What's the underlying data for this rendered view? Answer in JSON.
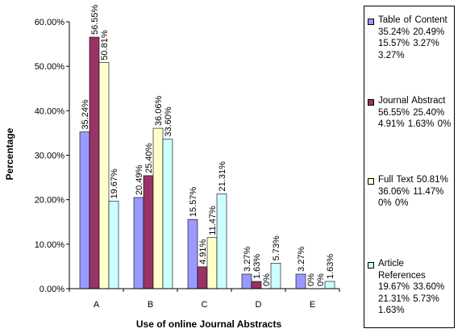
{
  "chart_data": {
    "type": "bar",
    "title": "",
    "xlabel": "Use of online Journal Abstracts",
    "ylabel": "Percentage",
    "categories": [
      "A",
      "B",
      "C",
      "D",
      "E"
    ],
    "ylim": [
      0,
      60
    ],
    "yticks": [
      "0.00%",
      "10.00%",
      "20.00%",
      "30.00%",
      "40.00%",
      "50.00%",
      "60.00%"
    ],
    "grid": false,
    "legend_position": "right",
    "series": [
      {
        "name": "Table of Content",
        "color": "#9999ff",
        "values": [
          35.24,
          20.49,
          15.57,
          3.27,
          3.27
        ],
        "labels": [
          "35.24%",
          "20.49%",
          "15.57%",
          "3.27%",
          "3.27%"
        ],
        "legend_label": "Table of Content 35.24% 20.49% 15.57% 3.27% 3.27%"
      },
      {
        "name": "Journal Abstract",
        "color": "#993366",
        "values": [
          56.55,
          25.4,
          4.91,
          1.63,
          0
        ],
        "labels": [
          "56.55%",
          "25.40%",
          "4.91%",
          "1.63%",
          "0%"
        ],
        "legend_label": "Journal Abstract 56.55% 25.40% 4.91% 1.63% 0%"
      },
      {
        "name": "Full Text",
        "color": "#ffffcc",
        "values": [
          50.81,
          36.06,
          11.47,
          0,
          0
        ],
        "labels": [
          "50.81%",
          "36.06%",
          "11.47%",
          "0%",
          "0%"
        ],
        "legend_label": "Full Text 50.81% 36.06% 11.47% 0% 0%"
      },
      {
        "name": "Article References",
        "color": "#ccffff",
        "values": [
          19.67,
          33.6,
          21.31,
          5.73,
          1.63
        ],
        "labels": [
          "19.67%",
          "33.60%",
          "21.31%",
          "5.73%",
          "1.63%"
        ],
        "legend_label": "Article References 19.67% 33.60% 21.31% 5.73% 1.63%"
      }
    ]
  }
}
